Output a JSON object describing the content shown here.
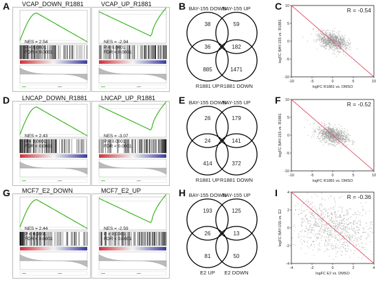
{
  "rows": [
    {
      "gsea_label": "A",
      "venn_label": "B",
      "scatter_label": "C",
      "gsea": [
        {
          "title": "VCAP_DOWN_R1881",
          "stats": [
            "NES = 2.54",
            "P < 0.0001",
            "FDR < 0.0001"
          ],
          "direction": "down"
        },
        {
          "title": "VCAP_UP_R1881",
          "stats": [
            "NES = -2.94",
            "P < 0.0001",
            "FDR < 0.0001"
          ],
          "direction": "up"
        }
      ],
      "venn": [
        {
          "top_label": "BAY-155 DOWN",
          "bottom_label": "R1881 UP",
          "top_only": "38",
          "overlap": "36",
          "bottom_only": "885"
        },
        {
          "top_label": "BAY-155 UP",
          "bottom_label": "R1881 DOWN",
          "top_only": "59",
          "overlap": "182",
          "bottom_only": "1471"
        }
      ],
      "scatter": {
        "r": "R = -0.54",
        "xlabel": "logFC R1881 vs. DMSO",
        "ylabel": "logFC BAY-155 vs. R1881",
        "xticks": [
          "-10",
          "-5",
          "0",
          "5",
          "10"
        ],
        "yticks": [
          "10",
          "5",
          "0",
          "-5",
          "-10"
        ],
        "xlim": [
          -10,
          10
        ],
        "ylim": [
          -10,
          10
        ],
        "r_value": -0.54
      }
    },
    {
      "gsea_label": "D",
      "venn_label": "E",
      "scatter_label": "F",
      "gsea": [
        {
          "title": "LNCAP_DOWN_R1881",
          "stats": [
            "NES = 2.43",
            "P < 0.0001",
            "FDR < 0.0001"
          ],
          "direction": "down"
        },
        {
          "title": "LNCAP_UP_R1881",
          "stats": [
            "NES = -3.07",
            "P < 0.0001",
            "FDR < 0.0001"
          ],
          "direction": "up"
        }
      ],
      "venn": [
        {
          "top_label": "BAY-155 DOWN",
          "bottom_label": "R1881 UP",
          "top_only": "26",
          "overlap": "24",
          "bottom_only": "414"
        },
        {
          "top_label": "BAY-155 UP",
          "bottom_label": "R1881 DOWN",
          "top_only": "179",
          "overlap": "141",
          "bottom_only": "372"
        }
      ],
      "scatter": {
        "r": "R = -0.52",
        "xlabel": "logFC R1881 vs. DMSO",
        "ylabel": "logFC BAY-155 vs. R1881",
        "xticks": [
          "-10",
          "-5",
          "0",
          "5",
          "10"
        ],
        "yticks": [
          "10",
          "5",
          "0",
          "-5",
          "-10"
        ],
        "xlim": [
          -10,
          10
        ],
        "ylim": [
          -10,
          10
        ],
        "r_value": -0.52
      }
    },
    {
      "gsea_label": "G",
      "venn_label": "H",
      "scatter_label": "I",
      "gsea": [
        {
          "title": "MCF7_E2_DOWN",
          "stats": [
            "NES = 2.44",
            "P < 0.0001",
            "FDR < 0.0001"
          ],
          "direction": "down"
        },
        {
          "title": "MCF7_E2_UP",
          "stats": [
            "NES = -2.59",
            "P < 0.0001",
            "FDR < 0.0001"
          ],
          "direction": "up"
        }
      ],
      "venn": [
        {
          "top_label": "BAY-155 DOWN",
          "bottom_label": "E2 UP",
          "top_only": "193",
          "overlap": "26",
          "bottom_only": "81"
        },
        {
          "top_label": "BAY-155 UP",
          "bottom_label": "E2 DOWN",
          "top_only": "125",
          "overlap": "13",
          "bottom_only": "50"
        }
      ],
      "scatter": {
        "r": "R = -0.36",
        "xlabel": "logFC E2 vs. DMSO",
        "ylabel": "logFC BAY-155 vs. E2",
        "xticks": [
          "-4",
          "-2",
          "0",
          "2",
          "4"
        ],
        "yticks": [
          "4",
          "2",
          "0",
          "-2",
          "-4"
        ],
        "xlim": [
          -4,
          4
        ],
        "ylim": [
          -4,
          4
        ],
        "r_value": -0.36
      }
    }
  ],
  "colors": {
    "es_curve": "#3cb521",
    "diag_line": "#e05060",
    "points": "#9a9a9a",
    "red_end": "#d0303a",
    "blue_end": "#3a3aa0"
  }
}
